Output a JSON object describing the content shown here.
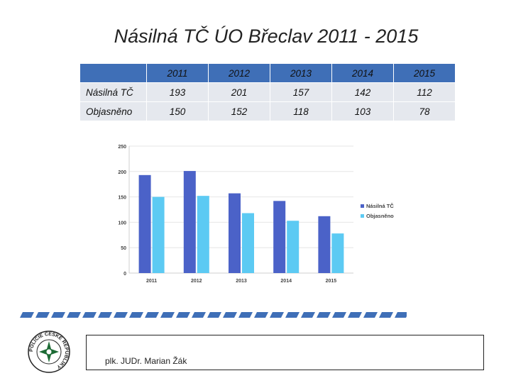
{
  "title": "Násilná TČ ÚO Břeclav 2011 - 2015",
  "table": {
    "header": [
      "2011",
      "2012",
      "2013",
      "2014",
      "2015"
    ],
    "rows": [
      {
        "label": "Násilná TČ",
        "values": [
          "193",
          "201",
          "157",
          "142",
          "112"
        ]
      },
      {
        "label": "Objasněno",
        "values": [
          "150",
          "152",
          "118",
          "103",
          "78"
        ]
      }
    ]
  },
  "chart_data": {
    "type": "bar",
    "categories": [
      "2011",
      "2012",
      "2013",
      "2014",
      "2015"
    ],
    "series": [
      {
        "name": "Násilná TČ",
        "values": [
          193,
          201,
          157,
          142,
          112
        ],
        "color": "#4b62c8"
      },
      {
        "name": "Objasněno",
        "values": [
          150,
          152,
          118,
          103,
          78
        ],
        "color": "#5ccaf3"
      }
    ],
    "ylim": [
      0,
      250
    ],
    "yticks": [
      0,
      50,
      100,
      150,
      200,
      250
    ],
    "title": "",
    "xlabel": "",
    "ylabel": "",
    "legend": "right"
  },
  "footer": {
    "author": "plk. JUDr. Marian Žák"
  },
  "logo": {
    "text": "POLICIE ČESKÉ REPUBLIKY"
  },
  "colors": {
    "table_header": "#3f6fb7",
    "table_cell": "#e5e8ee",
    "divider": "#3f6fb7"
  }
}
